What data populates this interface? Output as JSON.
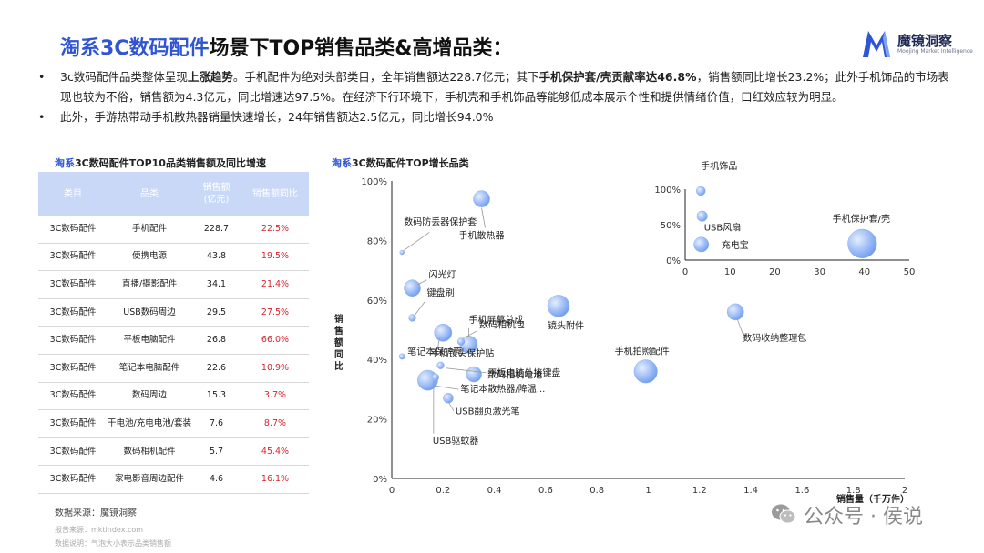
{
  "title": {
    "highlight": "淘系3C数码配件",
    "rest": "场景下TOP销售品类&高增品类："
  },
  "logo": {
    "name": "魔镜洞察",
    "sub": "Moojing Market Intelligence"
  },
  "bullets": [
    {
      "segments": [
        {
          "text": "3c数码配件品类整体呈现",
          "bold": false
        },
        {
          "text": "上涨趋势",
          "bold": true
        },
        {
          "text": "。手机配件为绝对头部类目，全年销售额达228.7亿元；其下",
          "bold": false
        },
        {
          "text": "手机保护套/壳贡献率达46.8%",
          "bold": true
        },
        {
          "text": "，销售额同比增长23.2%；此外手机饰品的市场表现也较为不俗，销售额为4.3亿元，同比增速达97.5%。在经济下行环境下，手机壳和手机饰品等能够低成本展示个性和提供情绪价值，口红效应较为明显。",
          "bold": false
        }
      ]
    },
    {
      "segments": [
        {
          "text": "此外，手游热带动手机散热器销量快速增长，24年销售额达2.5亿元，同比增长94.0%",
          "bold": false
        }
      ]
    }
  ],
  "table": {
    "title_highlight": "淘系",
    "title_rest": "3C数码配件TOP10品类销售额及同比增速",
    "headers": [
      "类目",
      "品类",
      "销售额\n(亿元)",
      "销售额同比"
    ],
    "rows": [
      [
        "3C数码配件",
        "手机配件",
        "228.7",
        "22.5%"
      ],
      [
        "3C数码配件",
        "便携电源",
        "43.8",
        "19.5%"
      ],
      [
        "3C数码配件",
        "直播/摄影配件",
        "34.1",
        "21.4%"
      ],
      [
        "3C数码配件",
        "USB数码周边",
        "29.5",
        "27.5%"
      ],
      [
        "3C数码配件",
        "平板电脑配件",
        "26.8",
        "66.0%"
      ],
      [
        "3C数码配件",
        "笔记本电脑配件",
        "22.6",
        "10.9%"
      ],
      [
        "3C数码配件",
        "数码周边",
        "15.3",
        "3.7%"
      ],
      [
        "3C数码配件",
        "干电池/充电电池/套装",
        "7.6",
        "8.7%"
      ],
      [
        "3C数码配件",
        "数码相机配件",
        "5.7",
        "45.4%"
      ],
      [
        "3C数码配件",
        "家电影音周边配件",
        "4.6",
        "16.1%"
      ]
    ]
  },
  "source": "数据来源：魔镜洞察",
  "footnotes": [
    "报告来源：mktindex.com",
    "数据说明：气泡大小表示品类销售额"
  ],
  "colors": {
    "accent": "#2f55d4",
    "header_bg": "#c9d8f6",
    "red": "#d8262c",
    "bubble": "#6f9cf0"
  },
  "watermark": {
    "text": "公众号 · 侯说"
  },
  "chart_data": [
    {
      "type": "scatter",
      "title_highlight": "淘系",
      "title_rest": "3C数码配件TOP增长品类",
      "xlabel": "销售量（千万件）",
      "ylabel": "销售额同比",
      "xlim": [
        0,
        2
      ],
      "ylim": [
        0,
        1
      ],
      "xticks": [
        "0",
        "0.2",
        "0.4",
        "0.6",
        "0.8",
        "1",
        "1.2",
        "1.4",
        "1.6",
        "1.8",
        "2"
      ],
      "yticks": [
        "0%",
        "20%",
        "40%",
        "60%",
        "80%",
        "100%"
      ],
      "points": [
        {
          "label": "数码防丢器保护套",
          "x": 0.04,
          "y": 0.76,
          "size": 0.6
        },
        {
          "label": "手机散热器",
          "x": 0.35,
          "y": 0.94,
          "size": 8
        },
        {
          "label": "闪光灯",
          "x": 0.08,
          "y": 0.64,
          "size": 8
        },
        {
          "label": "键盘刷",
          "x": 0.08,
          "y": 0.54,
          "size": 1.5
        },
        {
          "label": "手机镜头保护贴",
          "x": 0.2,
          "y": 0.49,
          "size": 9
        },
        {
          "label": "手机屏幕总成",
          "x": 0.3,
          "y": 0.45,
          "size": 9
        },
        {
          "label": "笔记本保护壳",
          "x": 0.04,
          "y": 0.41,
          "size": 1
        },
        {
          "label": "数码相机包",
          "x": 0.27,
          "y": 0.46,
          "size": 1.5
        },
        {
          "label": "平板电脑外接键盘",
          "x": 0.19,
          "y": 0.38,
          "size": 1.5
        },
        {
          "label": "数码相机电池",
          "x": 0.32,
          "y": 0.35,
          "size": 7
        },
        {
          "label": "笔记本散热器/降温...",
          "x": 0.14,
          "y": 0.33,
          "size": 12
        },
        {
          "label": "USB翻页激光笔",
          "x": 0.22,
          "y": 0.27,
          "size": 3
        },
        {
          "label": "USB驱蚊器",
          "x": 0.17,
          "y": 0.34,
          "size": 1.5
        },
        {
          "label": "镜头附件",
          "x": 0.65,
          "y": 0.58,
          "size": 14
        },
        {
          "label": "手机拍照配件",
          "x": 0.99,
          "y": 0.36,
          "size": 16
        },
        {
          "label": "数码收纳整理包",
          "x": 1.34,
          "y": 0.56,
          "size": 8
        }
      ]
    },
    {
      "type": "scatter",
      "xlim": [
        0,
        50
      ],
      "ylim": [
        0,
        1
      ],
      "xticks": [
        "0",
        "10",
        "20",
        "30",
        "40",
        "50"
      ],
      "yticks": [
        "0%",
        "50%",
        "100%"
      ],
      "points": [
        {
          "label": "手机饰品",
          "x": 3.5,
          "y": 0.975,
          "size": 3
        },
        {
          "label": "USB风扇",
          "x": 3.8,
          "y": 0.62,
          "size": 4
        },
        {
          "label": "充电宝",
          "x": 3.6,
          "y": 0.22,
          "size": 8
        },
        {
          "label": "手机保护套/壳",
          "x": 39.5,
          "y": 0.232,
          "size": 30
        }
      ]
    }
  ]
}
